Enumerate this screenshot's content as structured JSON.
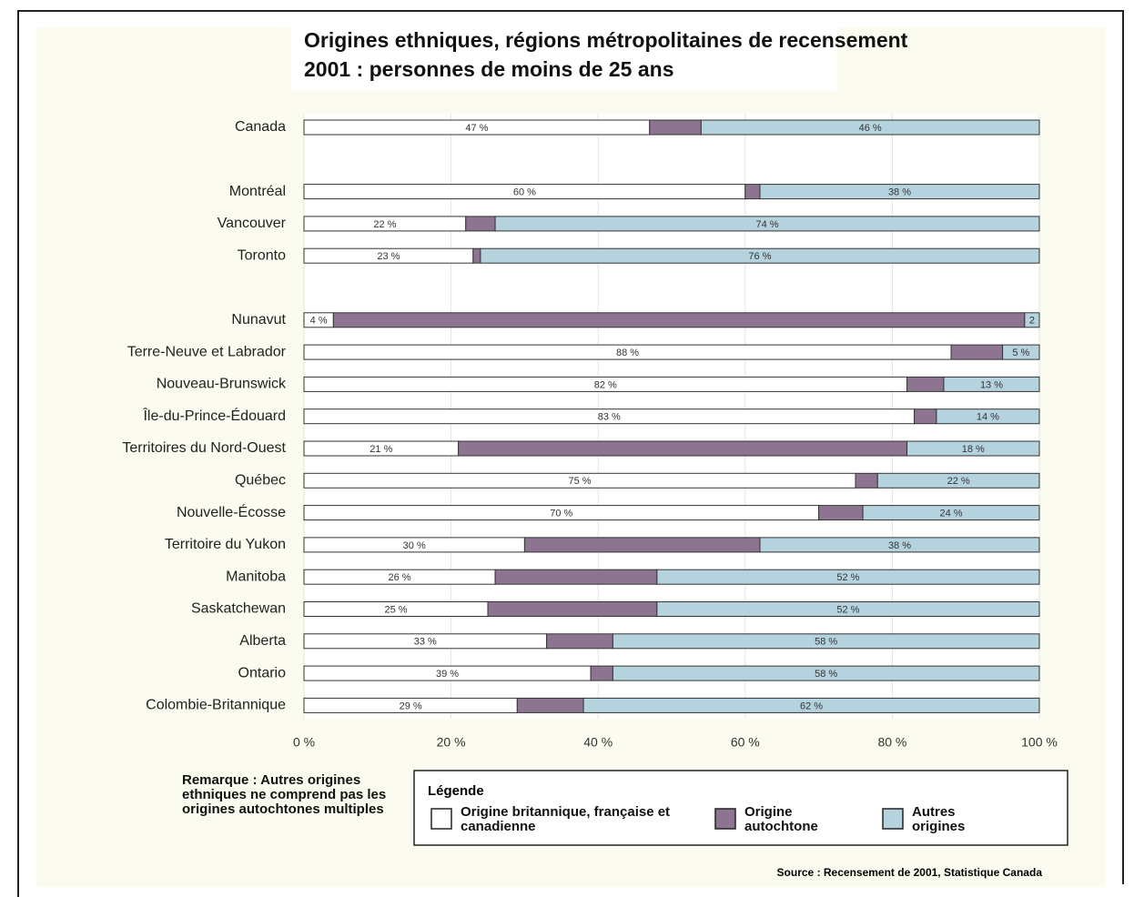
{
  "chart_data": {
    "type": "stacked_barh",
    "title": [
      "Origines ethniques, régions métropolitaines de recensement",
      "2001 : personnes de moins de 25 ans"
    ],
    "categories": [
      "Canada",
      null,
      "Montréal",
      "Vancouver",
      "Toronto",
      null,
      "Nunavut",
      "Terre-Neuve et Labrador",
      "Nouveau-Brunswick",
      "Île-du-Prince-Édouard",
      "Territoires du Nord-Ouest",
      "Québec",
      "Nouvelle-Écosse",
      "Territoire du Yukon",
      "Manitoba",
      "Saskatchewan",
      "Alberta",
      "Ontario",
      "Colombie-Britannique"
    ],
    "series": [
      {
        "name": "Origine britannique, française et canadienne",
        "color": "#ffffff",
        "values": [
          47,
          null,
          60,
          22,
          23,
          null,
          4,
          88,
          82,
          83,
          21,
          75,
          70,
          30,
          26,
          25,
          33,
          39,
          29
        ],
        "value_labels": [
          "47 %",
          null,
          "60 %",
          "22 %",
          "23 %",
          null,
          "4 %",
          "88 %",
          "82 %",
          "83 %",
          "21 %",
          "75 %",
          "70 %",
          "30 %",
          "26 %",
          "25 %",
          "33 %",
          "39 %",
          "29 %"
        ]
      },
      {
        "name": "Origine autochtone",
        "color": "#8d7592",
        "values": [
          7,
          null,
          2,
          4,
          1,
          null,
          94,
          7,
          5,
          3,
          61,
          3,
          6,
          32,
          22,
          23,
          9,
          3,
          9
        ]
      },
      {
        "name": "Autres origines",
        "color": "#b5d3df",
        "values": [
          46,
          null,
          38,
          74,
          76,
          null,
          2,
          5,
          13,
          14,
          18,
          22,
          24,
          38,
          52,
          52,
          58,
          58,
          62
        ],
        "value_labels": [
          "46 %",
          null,
          "38 %",
          "74 %",
          "76 %",
          null,
          "2",
          "5 %",
          "13 %",
          "14 %",
          "18 %",
          "22 %",
          "24 %",
          "38 %",
          "52 %",
          "52 %",
          "58 %",
          "58 %",
          "62 %"
        ]
      }
    ],
    "xlim": [
      0,
      100
    ],
    "xticks": [
      {
        "value": 0,
        "label": "0 %"
      },
      {
        "value": 20,
        "label": "20 %"
      },
      {
        "value": 40,
        "label": "40 %"
      },
      {
        "value": 60,
        "label": "60 %"
      },
      {
        "value": 80,
        "label": "80 %"
      },
      {
        "value": 100,
        "label": "100 %"
      }
    ],
    "grid": true,
    "legend_title": "Légende",
    "note": "Remarque : Autres origines ethniques ne comprend pas les origines autochtones multiples",
    "source": "Source : Recensement de 2001, Statistique Canada"
  }
}
